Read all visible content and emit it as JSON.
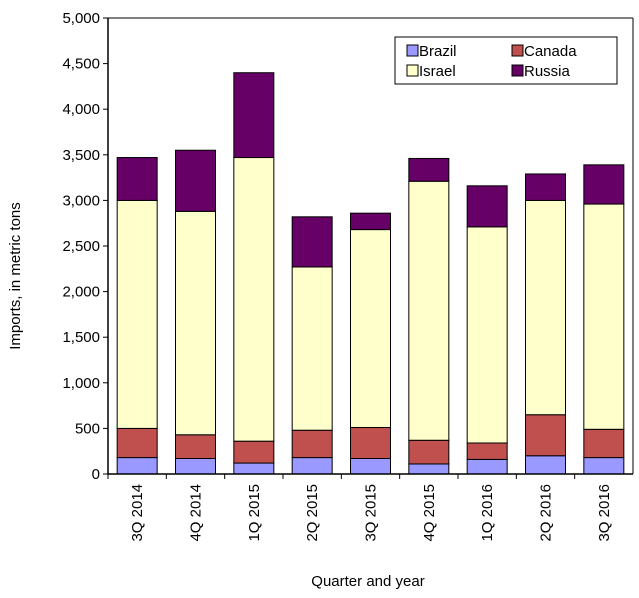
{
  "chart_data": {
    "type": "bar",
    "stacked": true,
    "title": "",
    "xlabel": "Quarter and year",
    "ylabel": "Imports, in metric tons",
    "ylim": [
      0,
      5000
    ],
    "yticks": [
      0,
      500,
      1000,
      1500,
      2000,
      2500,
      3000,
      3500,
      4000,
      4500,
      5000
    ],
    "ytick_labels": [
      "0",
      "500",
      "1,000",
      "1,500",
      "2,000",
      "2,500",
      "3,000",
      "3,500",
      "4,000",
      "4,500",
      "5,000"
    ],
    "grid": false,
    "legend_position": "top-right",
    "categories": [
      "3Q 2014",
      "4Q 2014",
      "1Q 2015",
      "2Q 2015",
      "3Q 2015",
      "4Q 2015",
      "1Q 2016",
      "2Q 2016",
      "3Q 2016"
    ],
    "series": [
      {
        "name": "Brazil",
        "color": "#9999ff",
        "values": [
          180,
          170,
          120,
          180,
          170,
          110,
          160,
          200,
          180
        ]
      },
      {
        "name": "Canada",
        "color": "#c0504d",
        "values": [
          320,
          260,
          240,
          300,
          340,
          260,
          180,
          450,
          310
        ]
      },
      {
        "name": "Israel",
        "color": "#ffffcc",
        "values": [
          2500,
          2450,
          3110,
          1790,
          2170,
          2840,
          2370,
          2350,
          2470
        ]
      },
      {
        "name": "Russia",
        "color": "#660066",
        "values": [
          470,
          670,
          930,
          550,
          180,
          250,
          450,
          290,
          430
        ]
      }
    ],
    "legend_layout": [
      "Brazil",
      "Canada",
      "Israel",
      "Russia"
    ]
  }
}
